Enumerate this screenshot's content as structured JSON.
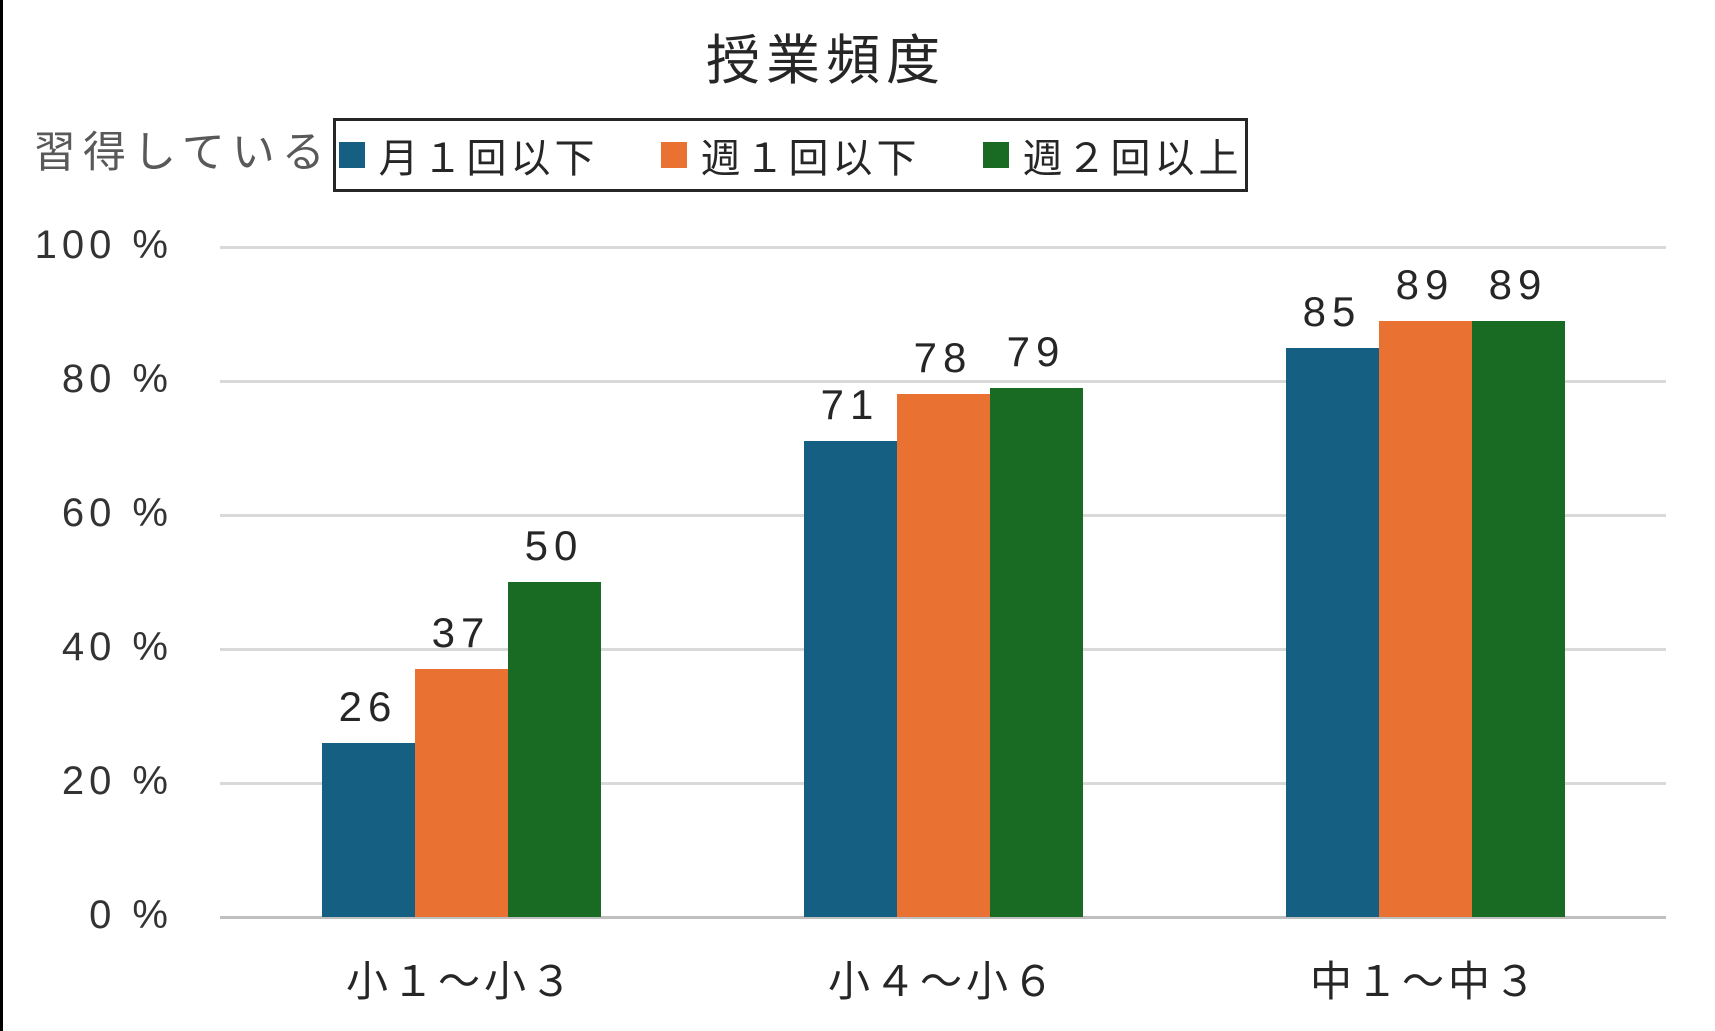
{
  "chart_data": {
    "type": "bar",
    "title": "授業頻度",
    "ylabel": "習得している",
    "xlabel": "",
    "categories": [
      "小１～小３",
      "小４～小６",
      "中１～中３"
    ],
    "series": [
      {
        "name": "月１回以下",
        "color": "#156082",
        "values": [
          26,
          71,
          85
        ]
      },
      {
        "name": "週１回以下",
        "color": "#E97132",
        "values": [
          37,
          78,
          89
        ]
      },
      {
        "name": "週２回以上",
        "color": "#196B24",
        "values": [
          50,
          79,
          89
        ]
      }
    ],
    "y_ticks": [
      "0 %",
      "20 %",
      "40 %",
      "60 %",
      "80 %",
      "100 %"
    ],
    "ylim": [
      0,
      100
    ],
    "grid": true,
    "legend_position": "top",
    "data_labels": true
  },
  "colors": {
    "gridline": "#D9D9D9",
    "axis_line": "#BFBFBF",
    "text": "#262626",
    "muted_text": "#595959",
    "frame_border": "#000000"
  }
}
